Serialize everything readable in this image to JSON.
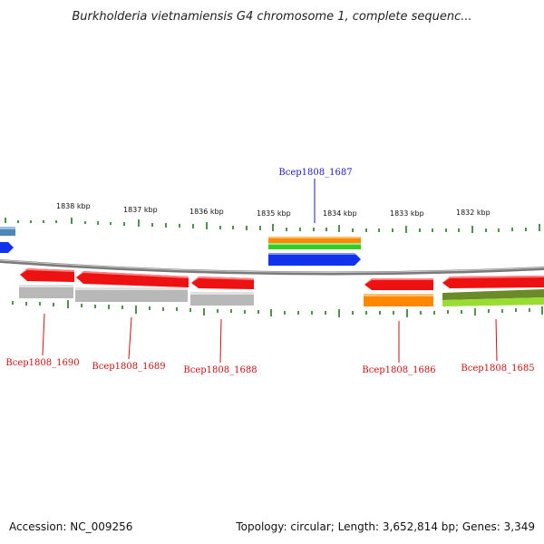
{
  "title": "Burkholderia vietnamiensis G4 chromosome 1, complete sequenc...",
  "footer": {
    "accession": "Accession: NC_009256",
    "summary": "Topology: circular; Length: 3,652,814 bp; Genes: 3,349"
  },
  "scale_labels": [
    "1838 kbp",
    "1837 kbp",
    "1836 kbp",
    "1835 kbp",
    "1834 kbp",
    "1833 kbp",
    "1832 kbp"
  ],
  "gene_labels": {
    "top": [
      "Bcep1808_1687"
    ],
    "bottom": [
      "Bcep1808_1690",
      "Bcep1808_1689",
      "Bcep1808_1688",
      "Bcep1808_1686",
      "Bcep1808_1685"
    ]
  },
  "colors": {
    "forward_label": "#1a1acc",
    "reverse_label": "#cc1111",
    "gene_red": "#ee1111",
    "gene_blue": "#1133ee",
    "gene_orange": "#ff8800",
    "gene_green": "#33cc22",
    "gene_lightgreen": "#99dd33",
    "gene_gray": "#b8b8b8",
    "backbone": "#7a7a7a",
    "tick": "#227722"
  }
}
